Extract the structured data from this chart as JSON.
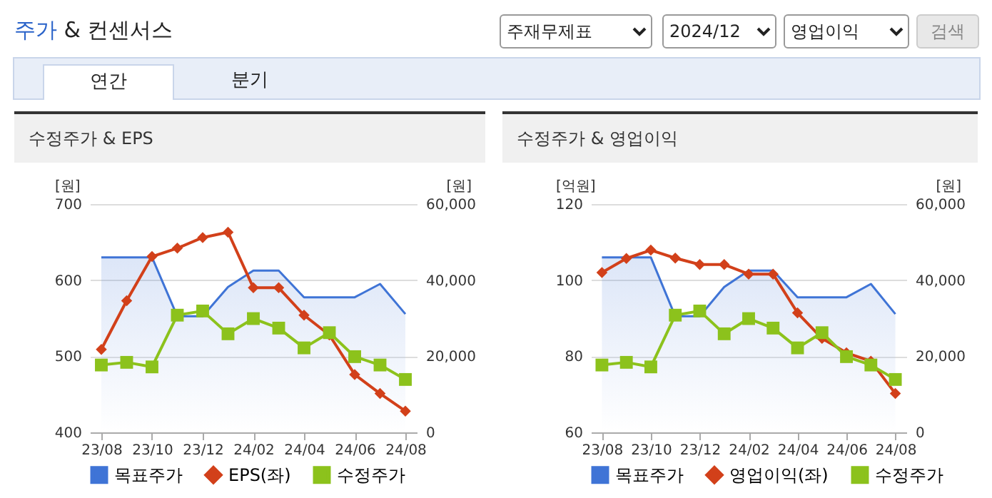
{
  "chart_data": [
    {
      "type": "other",
      "title": "주가 & 컨센서스",
      "annotations": [
        "주재무제표",
        "2024/12",
        "영업이익",
        "검색",
        "연간",
        "분기"
      ]
    },
    {
      "type": "line",
      "title": "수정주가 & EPS",
      "categories": [
        "23/08",
        null,
        "23/10",
        null,
        "23/12",
        null,
        "24/02",
        null,
        "24/04",
        null,
        "24/06",
        null,
        "24/08"
      ],
      "ylabel": "[원]",
      "y2label": "[원]",
      "ylim": [
        400,
        700
      ],
      "yticks": [
        400,
        500,
        600,
        700
      ],
      "y2lim": [
        0,
        60000
      ],
      "y2ticks": [
        0,
        {
          "value": 20000,
          "label": "20,000"
        },
        {
          "value": 40000,
          "label": "40,000"
        },
        {
          "value": 60000,
          "label": "60,000"
        }
      ],
      "grid": "y",
      "legend": "bottom",
      "series": [
        {
          "name": "목표주가",
          "type": "area",
          "axis": "y2",
          "color": "#3f74d6",
          "marker": "none",
          "values": [
            46000,
            46000,
            46000,
            30500,
            30500,
            38200,
            42500,
            42500,
            35500,
            35500,
            35500,
            39000,
            31100
          ]
        },
        {
          "name": "EPS(좌)",
          "type": "line",
          "color": "#d2401a",
          "marker": "diamond",
          "values": [
            509,
            573,
            631,
            642,
            656,
            663,
            590,
            590,
            554,
            528,
            476,
            451,
            428
          ]
        },
        {
          "name": "수정주가",
          "type": "line",
          "axis": "y2",
          "color": "#8cc21c",
          "marker": "square",
          "values": [
            17700,
            18400,
            17200,
            30800,
            31900,
            25900,
            29900,
            27400,
            22200,
            26200,
            19900,
            17700,
            13900
          ]
        }
      ]
    },
    {
      "type": "line",
      "title": "수정주가 & 영업이익",
      "categories": [
        "23/08",
        null,
        "23/10",
        null,
        "23/12",
        null,
        "24/02",
        null,
        "24/04",
        null,
        "24/06",
        null,
        "24/08"
      ],
      "ylabel": "[억원]",
      "y2label": "[원]",
      "ylim": [
        60,
        120
      ],
      "yticks": [
        60,
        80,
        100,
        120
      ],
      "y2lim": [
        0,
        60000
      ],
      "y2ticks": [
        0,
        {
          "value": 20000,
          "label": "20,000"
        },
        {
          "value": 40000,
          "label": "40,000"
        },
        {
          "value": 60000,
          "label": "60,000"
        }
      ],
      "grid": "y",
      "legend": "bottom",
      "series": [
        {
          "name": "목표주가",
          "type": "area",
          "axis": "y2",
          "color": "#3f74d6",
          "marker": "none",
          "values": [
            46000,
            46000,
            46000,
            30500,
            30500,
            38200,
            42500,
            42500,
            35500,
            35500,
            35500,
            39000,
            31100
          ]
        },
        {
          "name": "영업이익(좌)",
          "type": "line",
          "color": "#d2401a",
          "marker": "diamond",
          "values": [
            102,
            105.7,
            107.9,
            105.8,
            104.1,
            104.1,
            101.6,
            101.6,
            91.4,
            84.7,
            80.9,
            78.7,
            70.2
          ]
        },
        {
          "name": "수정주가",
          "type": "line",
          "axis": "y2",
          "color": "#8cc21c",
          "marker": "square",
          "values": [
            17700,
            18400,
            17200,
            30800,
            31900,
            25900,
            29900,
            27400,
            22200,
            26200,
            19900,
            17700,
            13900
          ]
        }
      ]
    }
  ]
}
